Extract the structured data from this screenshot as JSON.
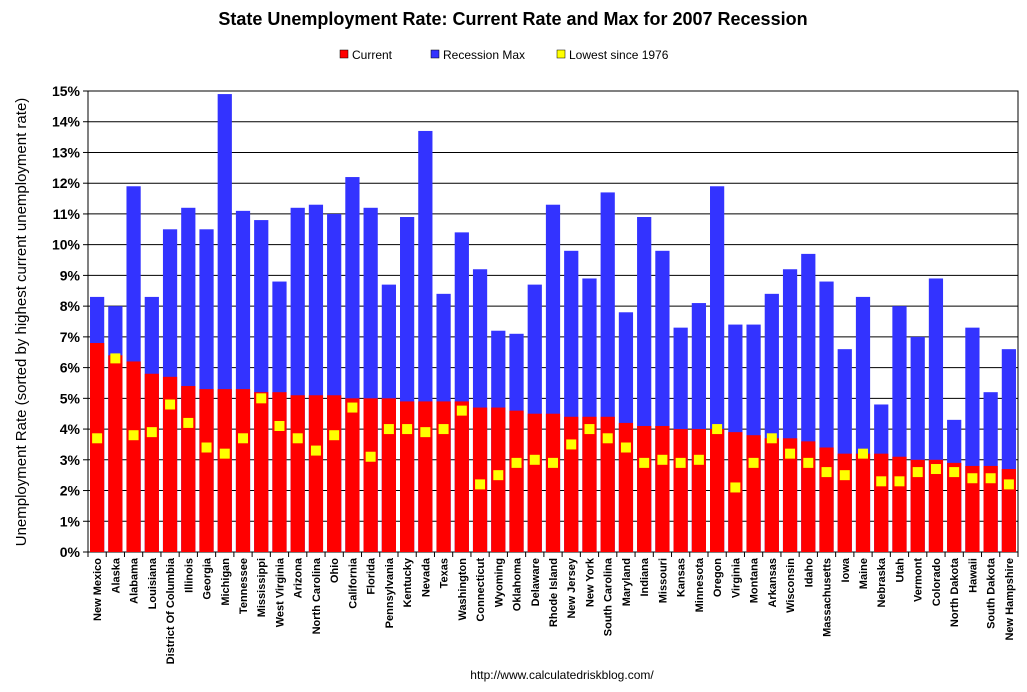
{
  "chart_data": {
    "type": "bar",
    "title": "State Unemployment Rate: Current Rate and Max for 2007 Recession",
    "ylabel": "Unemployment Rate (sorted by highest current unemployment rate)",
    "xlabel": "",
    "ylim": [
      0,
      15
    ],
    "yticks": [
      "0%",
      "1%",
      "2%",
      "3%",
      "4%",
      "5%",
      "6%",
      "7%",
      "8%",
      "9%",
      "10%",
      "11%",
      "12%",
      "13%",
      "14%",
      "15%"
    ],
    "grid": true,
    "legend_position": "top-center",
    "source": "http://www.calculatedriskblog.com/",
    "categories": [
      "New Mexico",
      "Alaska",
      "Alabama",
      "Louisiana",
      "District Of Columbia",
      "Illinois",
      "Georgia",
      "Michigan",
      "Tennessee",
      "Mississippi",
      "West Virginia",
      "Arizona",
      "North Carolina",
      "Ohio",
      "California",
      "Florida",
      "Pennsylvania",
      "Kentucky",
      "Nevada",
      "Texas",
      "Washington",
      "Connecticut",
      "Wyoming",
      "Oklahoma",
      "Delaware",
      "Rhode Island",
      "New Jersey",
      "New York",
      "South Carolina",
      "Maryland",
      "Indiana",
      "Missouri",
      "Kansas",
      "Minnesota",
      "Oregon",
      "Virginia",
      "Montana",
      "Arkansas",
      "Wisconsin",
      "Idaho",
      "Massachusetts",
      "Iowa",
      "Maine",
      "Nebraska",
      "Utah",
      "Vermont",
      "Colorado",
      "North Dakota",
      "Hawaii",
      "South Dakota",
      "New Hampshire"
    ],
    "series": [
      {
        "name": "Current",
        "color": "#ff0000",
        "values": [
          6.8,
          6.4,
          6.2,
          5.8,
          5.7,
          5.4,
          5.3,
          5.3,
          5.3,
          5.2,
          5.2,
          5.1,
          5.1,
          5.1,
          5.0,
          5.0,
          5.0,
          4.9,
          4.9,
          4.9,
          4.9,
          4.7,
          4.7,
          4.6,
          4.5,
          4.5,
          4.4,
          4.4,
          4.4,
          4.2,
          4.1,
          4.1,
          4.0,
          4.0,
          4.0,
          3.9,
          3.8,
          3.7,
          3.7,
          3.6,
          3.4,
          3.2,
          3.2,
          3.2,
          3.1,
          3.0,
          3.0,
          2.9,
          2.8,
          2.8,
          2.7
        ]
      },
      {
        "name": "Recession Max",
        "color": "#3333ff",
        "values": [
          8.3,
          8.0,
          11.9,
          8.3,
          10.5,
          11.2,
          10.5,
          14.9,
          11.1,
          10.8,
          8.8,
          11.2,
          11.3,
          11.0,
          12.2,
          11.2,
          8.7,
          10.9,
          13.7,
          8.4,
          10.4,
          9.2,
          7.2,
          7.1,
          8.7,
          11.3,
          9.8,
          8.9,
          11.7,
          7.8,
          10.9,
          9.8,
          7.3,
          8.1,
          11.9,
          7.4,
          7.4,
          8.4,
          9.2,
          9.7,
          8.8,
          6.6,
          8.3,
          4.8,
          8.0,
          7.0,
          8.9,
          4.3,
          7.3,
          5.2,
          6.6
        ]
      },
      {
        "name": "Lowest since 1976",
        "color": "#ffff00",
        "values": [
          3.7,
          6.3,
          3.8,
          3.9,
          4.8,
          4.2,
          3.4,
          3.2,
          3.7,
          5.0,
          4.1,
          3.7,
          3.3,
          3.8,
          4.7,
          3.1,
          4.0,
          4.0,
          3.9,
          4.0,
          4.6,
          2.2,
          2.5,
          2.9,
          3.0,
          2.9,
          3.5,
          4.0,
          3.7,
          3.4,
          2.9,
          3.0,
          2.9,
          3.0,
          4.0,
          2.1,
          2.9,
          3.7,
          3.2,
          2.9,
          2.6,
          2.5,
          3.2,
          2.3,
          2.3,
          2.6,
          2.7,
          2.6,
          2.4,
          2.4,
          2.2
        ]
      }
    ]
  }
}
